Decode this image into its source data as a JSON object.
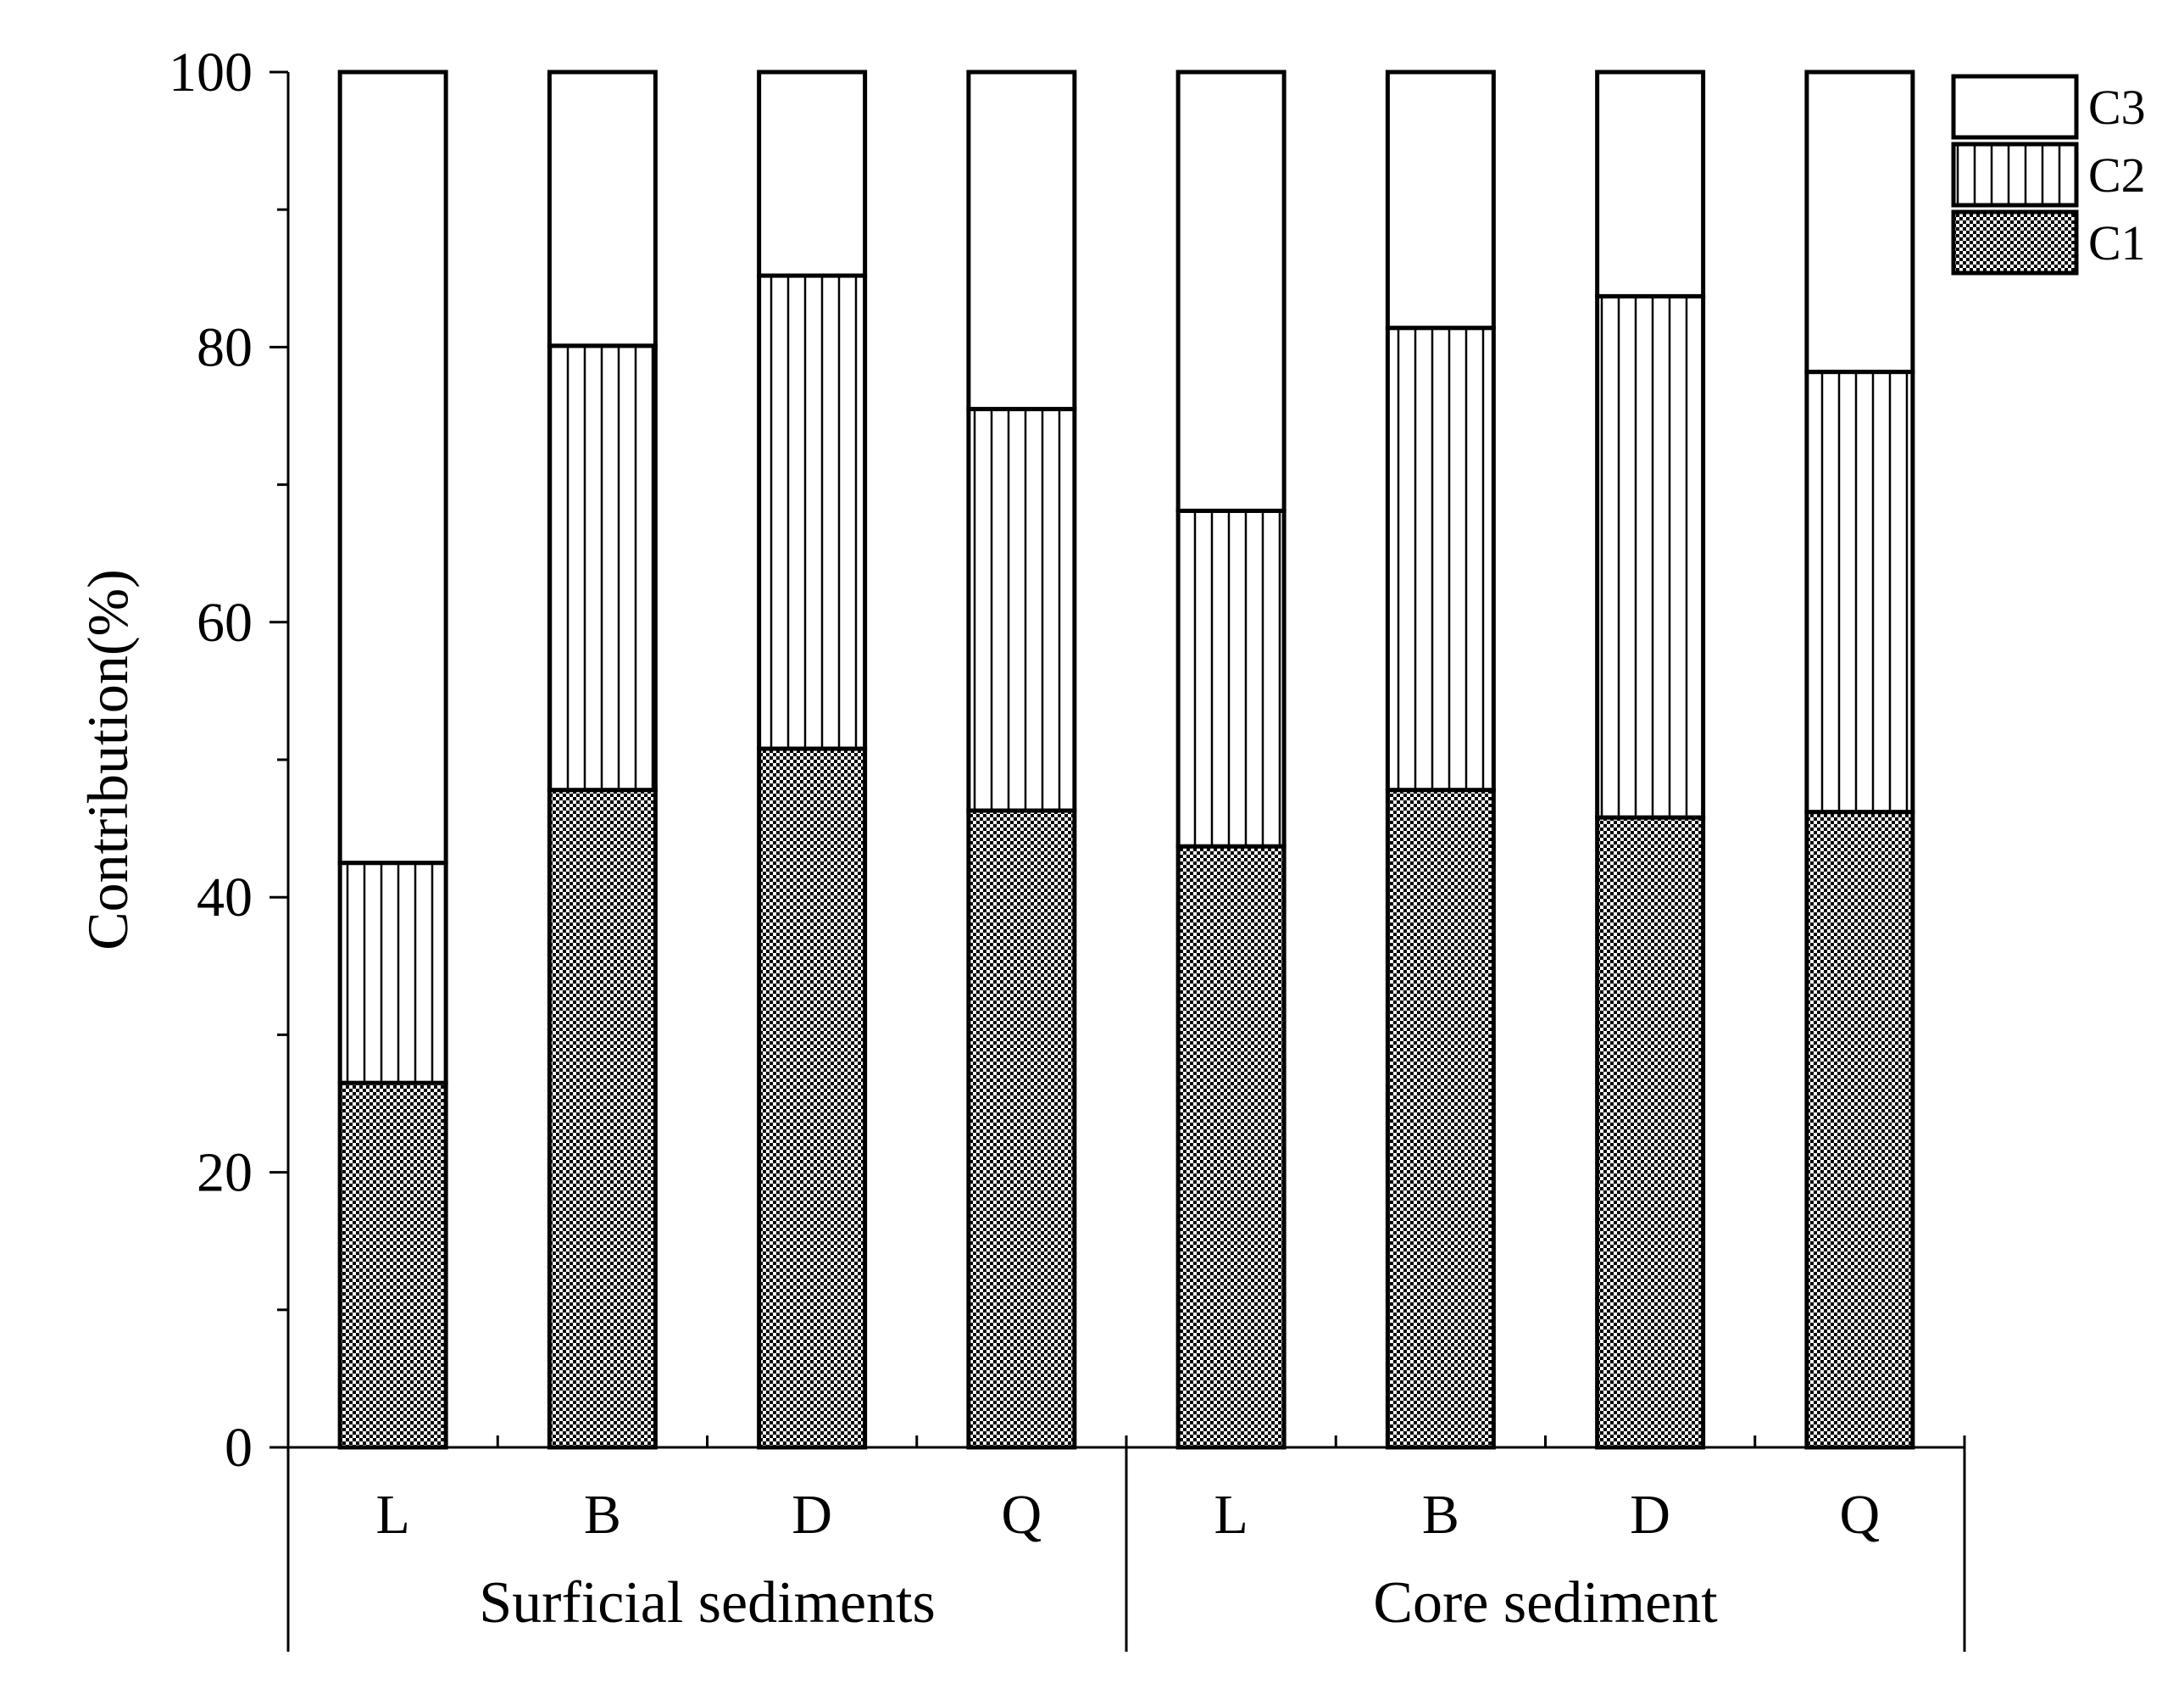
{
  "chart_data": {
    "type": "bar",
    "stacked": true,
    "title": "",
    "ylabel": "Contribution(%)",
    "xlabel": "",
    "ylim": [
      0,
      100
    ],
    "yticks": [
      0,
      20,
      40,
      60,
      80,
      100
    ],
    "yminor_step": 10,
    "categories": [
      "L",
      "B",
      "D",
      "Q",
      "L",
      "B",
      "D",
      "Q"
    ],
    "groups": [
      {
        "label": "Surficial sediments",
        "count": 4
      },
      {
        "label": "Core sediment",
        "count": 4
      }
    ],
    "series": [
      {
        "name": "C1",
        "pattern": "checker",
        "values": [
          26.5,
          47.8,
          50.8,
          46.3,
          43.7,
          47.8,
          45.8,
          46.2
        ]
      },
      {
        "name": "C2",
        "pattern": "vertical-lines",
        "values": [
          16.0,
          32.3,
          34.4,
          29.2,
          24.4,
          33.6,
          37.9,
          32.0
        ]
      },
      {
        "name": "C3",
        "pattern": "none",
        "values": [
          57.5,
          19.9,
          14.8,
          24.5,
          31.9,
          18.6,
          16.3,
          21.8
        ]
      }
    ],
    "legend_position": "top-right",
    "colors": {
      "ink": "#000000",
      "background": "#ffffff"
    }
  }
}
